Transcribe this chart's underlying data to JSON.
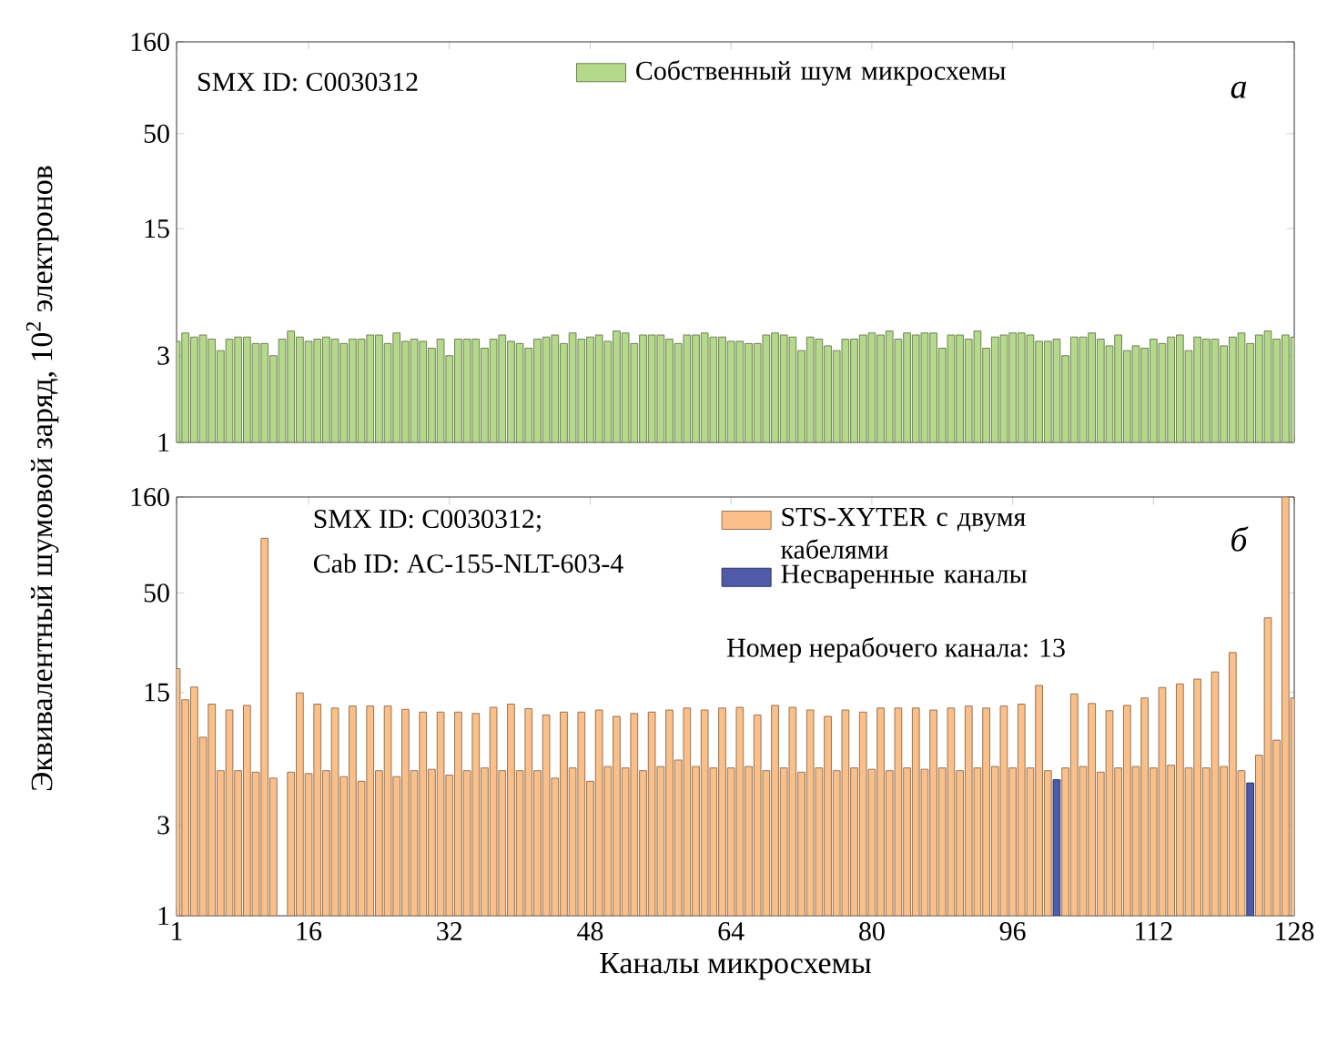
{
  "chart_data": [
    {
      "type": "bar",
      "ylabel": "Эквивалентный шумовой заряд, 10$^{2}$ электронов",
      "x": [
        1,
        2,
        3,
        4,
        5,
        6,
        7,
        8,
        9,
        10,
        11,
        12,
        13,
        14,
        15,
        16,
        17,
        18,
        19,
        20,
        21,
        22,
        23,
        24,
        25,
        26,
        27,
        28,
        29,
        30,
        31,
        32,
        33,
        34,
        35,
        36,
        37,
        38,
        39,
        40,
        41,
        42,
        43,
        44,
        45,
        46,
        47,
        48,
        49,
        50,
        51,
        52,
        53,
        54,
        55,
        56,
        57,
        58,
        59,
        60,
        61,
        62,
        63,
        64,
        65,
        66,
        67,
        68,
        69,
        70,
        71,
        72,
        73,
        74,
        75,
        76,
        77,
        78,
        79,
        80,
        81,
        82,
        83,
        84,
        85,
        86,
        87,
        88,
        89,
        90,
        91,
        92,
        93,
        94,
        95,
        96,
        97,
        98,
        99,
        100,
        101,
        102,
        103,
        104,
        105,
        106,
        107,
        108,
        109,
        110,
        111,
        112,
        113,
        114,
        115,
        116,
        117,
        118,
        119,
        120,
        121,
        122,
        123,
        124,
        125,
        126,
        127,
        128
      ],
      "series": [
        {
          "name": "Собственный шум микросхемы",
          "color": "#b5d98a",
          "values": [
            3.6,
            4.0,
            3.8,
            3.9,
            3.7,
            3.2,
            3.7,
            3.8,
            3.8,
            3.5,
            3.5,
            3.0,
            3.7,
            4.1,
            3.8,
            3.6,
            3.7,
            3.8,
            3.7,
            3.5,
            3.7,
            3.7,
            3.9,
            3.9,
            3.5,
            4.0,
            3.6,
            3.7,
            3.6,
            3.3,
            3.7,
            3.0,
            3.7,
            3.7,
            3.7,
            3.3,
            3.7,
            3.9,
            3.6,
            3.5,
            3.3,
            3.7,
            3.8,
            3.9,
            3.5,
            4.0,
            3.7,
            3.8,
            3.9,
            3.6,
            4.1,
            4.0,
            3.5,
            3.9,
            3.9,
            3.9,
            3.7,
            3.5,
            3.9,
            3.9,
            4.0,
            3.8,
            3.8,
            3.6,
            3.6,
            3.5,
            3.5,
            3.9,
            4.0,
            3.9,
            3.8,
            3.2,
            3.8,
            3.7,
            3.4,
            3.2,
            3.7,
            3.7,
            3.9,
            4.0,
            3.9,
            4.1,
            3.7,
            4.0,
            3.9,
            4.0,
            4.0,
            3.3,
            3.9,
            3.9,
            3.7,
            4.1,
            3.3,
            3.8,
            3.9,
            4.0,
            4.0,
            3.9,
            3.6,
            3.6,
            3.7,
            3.0,
            3.8,
            3.8,
            4.0,
            3.7,
            3.4,
            3.9,
            3.2,
            3.4,
            3.3,
            3.7,
            3.5,
            3.8,
            3.9,
            3.2,
            3.8,
            3.7,
            3.7,
            3.4,
            3.8,
            4.0,
            3.5,
            3.9,
            4.1,
            3.7,
            3.9,
            3.8
          ]
        }
      ],
      "xlim": [
        1,
        128
      ],
      "xticks": [
        1,
        16,
        32,
        48,
        64,
        80,
        96,
        112,
        128
      ],
      "ylim": [
        1,
        160
      ],
      "yticks": [
        1,
        3,
        15,
        50,
        160
      ],
      "log": true,
      "tick_labels": "y",
      "legend": "top",
      "annotations": [
        "SMX ID: C0030312",
        "а"
      ]
    },
    {
      "type": "bar",
      "xlabel": "Каналы микросхемы",
      "x": [
        1,
        2,
        3,
        4,
        5,
        6,
        7,
        8,
        9,
        10,
        11,
        12,
        13,
        14,
        15,
        16,
        17,
        18,
        19,
        20,
        21,
        22,
        23,
        24,
        25,
        26,
        27,
        28,
        29,
        30,
        31,
        32,
        33,
        34,
        35,
        36,
        37,
        38,
        39,
        40,
        41,
        42,
        43,
        44,
        45,
        46,
        47,
        48,
        49,
        50,
        51,
        52,
        53,
        54,
        55,
        56,
        57,
        58,
        59,
        60,
        61,
        62,
        63,
        64,
        65,
        66,
        67,
        68,
        69,
        70,
        71,
        72,
        73,
        74,
        75,
        76,
        77,
        78,
        79,
        80,
        81,
        82,
        83,
        84,
        85,
        86,
        87,
        88,
        89,
        90,
        91,
        92,
        93,
        94,
        95,
        96,
        97,
        98,
        99,
        100,
        101,
        102,
        103,
        104,
        105,
        106,
        107,
        108,
        109,
        110,
        111,
        112,
        113,
        114,
        115,
        116,
        117,
        118,
        119,
        120,
        121,
        122,
        123,
        124,
        125,
        126,
        127,
        128
      ],
      "series": [
        {
          "name": "STS-XYTER с двумя кабелями",
          "color": "#fbbf8a",
          "values": [
            20,
            13.7,
            16,
            8.7,
            13,
            5.8,
            12.1,
            5.8,
            12.8,
            5.7,
            97,
            5.3,
            null,
            5.7,
            14.9,
            5.6,
            13.0,
            5.8,
            12.4,
            5.4,
            12.7,
            5.1,
            12.7,
            5.8,
            12.7,
            5.4,
            12.2,
            5.8,
            11.8,
            5.9,
            11.8,
            5.5,
            11.8,
            5.8,
            11.6,
            6.0,
            12.5,
            5.8,
            13.0,
            5.8,
            12.3,
            5.8,
            11.4,
            5.3,
            11.8,
            6.0,
            11.8,
            5.1,
            12.1,
            6.1,
            11.2,
            6.0,
            11.6,
            5.8,
            11.8,
            6.1,
            12.1,
            6.6,
            12.4,
            6.1,
            12.1,
            6.0,
            12.4,
            6.0,
            12.5,
            6.1,
            11.4,
            5.8,
            12.8,
            6.0,
            12.5,
            5.7,
            12.1,
            6.0,
            11.2,
            5.8,
            12.1,
            6.0,
            11.8,
            5.9,
            12.4,
            5.8,
            12.4,
            6.0,
            12.4,
            5.9,
            12.1,
            6.0,
            12.4,
            5.8,
            12.7,
            6.0,
            12.4,
            6.1,
            12.7,
            6.0,
            13.0,
            6.0,
            16.3,
            5.8,
            null,
            6.0,
            14.7,
            6.1,
            13.1,
            5.7,
            12.0,
            6.0,
            12.8,
            6.1,
            14.0,
            6.0,
            15.9,
            6.2,
            16.6,
            6.0,
            17.6,
            6.0,
            19.2,
            6.1,
            24.3,
            5.8,
            null,
            7.0,
            37,
            8.4,
            160,
            14
          ]
        },
        {
          "name": "Несваренные каналы",
          "color": "#4f5aa8",
          "values": [
            null,
            null,
            null,
            null,
            null,
            null,
            null,
            null,
            null,
            null,
            null,
            null,
            null,
            null,
            null,
            null,
            null,
            null,
            null,
            null,
            null,
            null,
            null,
            null,
            null,
            null,
            null,
            null,
            null,
            null,
            null,
            null,
            null,
            null,
            null,
            null,
            null,
            null,
            null,
            null,
            null,
            null,
            null,
            null,
            null,
            null,
            null,
            null,
            null,
            null,
            null,
            null,
            null,
            null,
            null,
            null,
            null,
            null,
            null,
            null,
            null,
            null,
            null,
            null,
            null,
            null,
            null,
            null,
            null,
            null,
            null,
            null,
            null,
            null,
            null,
            null,
            null,
            null,
            null,
            null,
            null,
            null,
            null,
            null,
            null,
            null,
            null,
            null,
            null,
            null,
            null,
            null,
            null,
            null,
            null,
            null,
            null,
            null,
            null,
            null,
            5.2,
            null,
            null,
            null,
            null,
            null,
            null,
            null,
            null,
            null,
            null,
            null,
            null,
            null,
            null,
            null,
            null,
            null,
            null,
            null,
            null,
            null,
            5.0,
            null,
            null,
            null,
            null,
            null
          ]
        }
      ],
      "xlim": [
        1,
        128
      ],
      "xticks": [
        1,
        16,
        32,
        48,
        64,
        80,
        96,
        112,
        128
      ],
      "ylim": [
        1,
        160
      ],
      "yticks": [
        1,
        3,
        15,
        50,
        160
      ],
      "log": true,
      "legend": "top right",
      "annotations": [
        "SMX ID: C0030312;",
        "Cab ID: AC-155-NLT-603-4",
        "Номер нерабочего канала: 13",
        "б"
      ]
    }
  ]
}
